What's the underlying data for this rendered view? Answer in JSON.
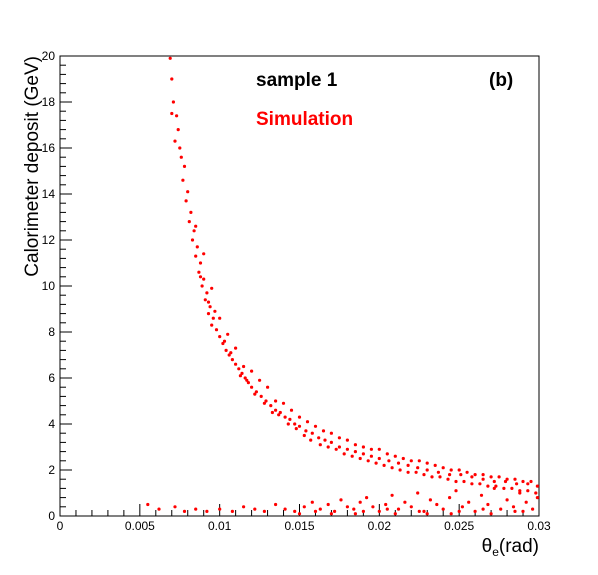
{
  "chart_data": {
    "type": "scatter",
    "title": "",
    "ylabel": "Calorimeter deposit (GeV)",
    "xlabel": {
      "symbol": "θ",
      "subscript": "e",
      "unit": "(rad)"
    },
    "xlim": [
      0,
      0.03
    ],
    "ylim": [
      0,
      20
    ],
    "x_ticks": [
      "0",
      "0.005",
      "0.01",
      "0.015",
      "0.02",
      "0.025",
      "0.03"
    ],
    "y_ticks": [
      "0",
      "2",
      "4",
      "6",
      "8",
      "10",
      "12",
      "14",
      "16",
      "18",
      "20"
    ],
    "grid": false,
    "marker_color": "#ff0000",
    "annotations": [
      {
        "text": "sample 1",
        "color": "#000000",
        "position": "top-center"
      },
      {
        "text": "(b)",
        "color": "#000000",
        "position": "top-right"
      },
      {
        "text": "Simulation",
        "color": "#ff0000",
        "position": "top-center"
      }
    ],
    "series": [
      {
        "points": [
          [
            0.0069,
            19.9
          ],
          [
            0.007,
            19.0
          ],
          [
            0.0071,
            18.0
          ],
          [
            0.007,
            17.5
          ],
          [
            0.0073,
            17.4
          ],
          [
            0.0074,
            16.8
          ],
          [
            0.0072,
            16.3
          ],
          [
            0.0075,
            16.0
          ],
          [
            0.0076,
            15.6
          ],
          [
            0.0078,
            15.2
          ],
          [
            0.0077,
            14.6
          ],
          [
            0.008,
            14.1
          ],
          [
            0.0079,
            13.7
          ],
          [
            0.0082,
            13.2
          ],
          [
            0.0081,
            12.8
          ],
          [
            0.0084,
            12.4
          ],
          [
            0.0083,
            12.0
          ],
          [
            0.0086,
            11.7
          ],
          [
            0.0085,
            11.3
          ],
          [
            0.0088,
            11.0
          ],
          [
            0.0087,
            10.6
          ],
          [
            0.009,
            10.3
          ],
          [
            0.0089,
            10.0
          ],
          [
            0.0092,
            9.7
          ],
          [
            0.0091,
            9.4
          ],
          [
            0.0094,
            9.1
          ],
          [
            0.0093,
            8.8
          ],
          [
            0.0096,
            8.6
          ],
          [
            0.0095,
            8.3
          ],
          [
            0.0098,
            8.1
          ],
          [
            0.01,
            7.8
          ],
          [
            0.0102,
            7.5
          ],
          [
            0.0104,
            7.2
          ],
          [
            0.0106,
            7.0
          ],
          [
            0.0108,
            6.8
          ],
          [
            0.011,
            6.6
          ],
          [
            0.0112,
            6.4
          ],
          [
            0.0114,
            6.2
          ],
          [
            0.0116,
            6.0
          ],
          [
            0.0118,
            5.8
          ],
          [
            0.012,
            5.6
          ],
          [
            0.0123,
            5.4
          ],
          [
            0.0126,
            5.2
          ],
          [
            0.0129,
            5.0
          ],
          [
            0.0132,
            4.8
          ],
          [
            0.0135,
            4.6
          ],
          [
            0.0138,
            4.5
          ],
          [
            0.0141,
            4.3
          ],
          [
            0.0144,
            4.2
          ],
          [
            0.0147,
            4.0
          ],
          [
            0.015,
            3.9
          ],
          [
            0.0154,
            3.7
          ],
          [
            0.0158,
            3.6
          ],
          [
            0.0162,
            3.4
          ],
          [
            0.0166,
            3.3
          ],
          [
            0.017,
            3.2
          ],
          [
            0.0175,
            3.0
          ],
          [
            0.018,
            2.9
          ],
          [
            0.0185,
            2.8
          ],
          [
            0.019,
            2.7
          ],
          [
            0.0195,
            2.6
          ],
          [
            0.02,
            2.5
          ],
          [
            0.0206,
            2.4
          ],
          [
            0.0212,
            2.3
          ],
          [
            0.0218,
            2.2
          ],
          [
            0.0224,
            2.1
          ],
          [
            0.023,
            2.0
          ],
          [
            0.0237,
            1.9
          ],
          [
            0.0244,
            1.8
          ],
          [
            0.0251,
            1.8
          ],
          [
            0.0258,
            1.7
          ],
          [
            0.0265,
            1.6
          ],
          [
            0.0272,
            1.5
          ],
          [
            0.0279,
            1.5
          ],
          [
            0.0286,
            1.4
          ],
          [
            0.0293,
            1.4
          ],
          [
            0.0299,
            1.3
          ],
          [
            0.0085,
            12.6
          ],
          [
            0.009,
            11.4
          ],
          [
            0.0095,
            9.9
          ],
          [
            0.01,
            8.6
          ],
          [
            0.0105,
            7.9
          ],
          [
            0.011,
            7.3
          ],
          [
            0.0115,
            6.5
          ],
          [
            0.012,
            6.3
          ],
          [
            0.0125,
            5.9
          ],
          [
            0.013,
            5.6
          ],
          [
            0.0135,
            5.0
          ],
          [
            0.014,
            4.9
          ],
          [
            0.0145,
            4.6
          ],
          [
            0.015,
            4.3
          ],
          [
            0.0155,
            4.1
          ],
          [
            0.016,
            3.9
          ],
          [
            0.0165,
            3.7
          ],
          [
            0.017,
            3.6
          ],
          [
            0.0175,
            3.4
          ],
          [
            0.018,
            3.3
          ],
          [
            0.0185,
            3.1
          ],
          [
            0.019,
            3.0
          ],
          [
            0.0195,
            2.9
          ],
          [
            0.02,
            2.9
          ],
          [
            0.0205,
            2.7
          ],
          [
            0.021,
            2.6
          ],
          [
            0.0215,
            2.5
          ],
          [
            0.022,
            2.4
          ],
          [
            0.0225,
            2.4
          ],
          [
            0.023,
            2.3
          ],
          [
            0.0235,
            2.2
          ],
          [
            0.024,
            2.1
          ],
          [
            0.0245,
            2.0
          ],
          [
            0.025,
            2.0
          ],
          [
            0.0255,
            1.9
          ],
          [
            0.026,
            1.8
          ],
          [
            0.0265,
            1.8
          ],
          [
            0.027,
            1.7
          ],
          [
            0.0275,
            1.7
          ],
          [
            0.028,
            1.6
          ],
          [
            0.0285,
            1.6
          ],
          [
            0.029,
            1.5
          ],
          [
            0.0295,
            1.5
          ],
          [
            0.0088,
            10.4
          ],
          [
            0.0093,
            9.3
          ],
          [
            0.0097,
            8.9
          ],
          [
            0.0103,
            7.6
          ],
          [
            0.0107,
            7.1
          ],
          [
            0.0113,
            6.1
          ],
          [
            0.0117,
            5.9
          ],
          [
            0.0122,
            5.3
          ],
          [
            0.0128,
            4.9
          ],
          [
            0.0133,
            4.5
          ],
          [
            0.0137,
            4.4
          ],
          [
            0.0143,
            4.0
          ],
          [
            0.0148,
            3.8
          ],
          [
            0.0153,
            3.5
          ],
          [
            0.0157,
            3.3
          ],
          [
            0.0163,
            3.1
          ],
          [
            0.0168,
            3.0
          ],
          [
            0.0173,
            2.9
          ],
          [
            0.0178,
            2.7
          ],
          [
            0.0183,
            2.6
          ],
          [
            0.0188,
            2.5
          ],
          [
            0.0193,
            2.4
          ],
          [
            0.0198,
            2.3
          ],
          [
            0.0203,
            2.2
          ],
          [
            0.0208,
            2.1
          ],
          [
            0.0213,
            2.0
          ],
          [
            0.0218,
            1.9
          ],
          [
            0.0223,
            1.9
          ],
          [
            0.0228,
            1.8
          ],
          [
            0.0233,
            1.7
          ],
          [
            0.0238,
            1.7
          ],
          [
            0.0243,
            1.6
          ],
          [
            0.0248,
            1.5
          ],
          [
            0.0253,
            1.5
          ],
          [
            0.0258,
            1.4
          ],
          [
            0.0263,
            1.4
          ],
          [
            0.0268,
            1.3
          ],
          [
            0.0273,
            1.3
          ],
          [
            0.0278,
            1.2
          ],
          [
            0.0283,
            1.2
          ],
          [
            0.0288,
            1.1
          ],
          [
            0.0293,
            1.1
          ],
          [
            0.0298,
            1.0
          ],
          [
            0.0055,
            0.5
          ],
          [
            0.0062,
            0.3
          ],
          [
            0.0072,
            0.4
          ],
          [
            0.0078,
            0.2
          ],
          [
            0.0085,
            0.3
          ],
          [
            0.0092,
            0.2
          ],
          [
            0.01,
            0.3
          ],
          [
            0.0108,
            0.2
          ],
          [
            0.0115,
            0.4
          ],
          [
            0.0122,
            0.3
          ],
          [
            0.0128,
            0.2
          ],
          [
            0.0135,
            0.5
          ],
          [
            0.0141,
            0.3
          ],
          [
            0.0147,
            0.2
          ],
          [
            0.0153,
            0.4
          ],
          [
            0.0158,
            0.6
          ],
          [
            0.0163,
            0.3
          ],
          [
            0.0168,
            0.5
          ],
          [
            0.0172,
            0.2
          ],
          [
            0.0176,
            0.7
          ],
          [
            0.018,
            0.4
          ],
          [
            0.0184,
            0.3
          ],
          [
            0.0188,
            0.6
          ],
          [
            0.0192,
            0.8
          ],
          [
            0.0196,
            0.4
          ],
          [
            0.02,
            0.2
          ],
          [
            0.0204,
            0.5
          ],
          [
            0.0208,
            0.9
          ],
          [
            0.0212,
            0.3
          ],
          [
            0.0216,
            0.6
          ],
          [
            0.022,
            0.4
          ],
          [
            0.0224,
            1.0
          ],
          [
            0.0228,
            0.2
          ],
          [
            0.0232,
            0.7
          ],
          [
            0.0236,
            0.5
          ],
          [
            0.024,
            0.3
          ],
          [
            0.0244,
            0.8
          ],
          [
            0.0248,
            1.1
          ],
          [
            0.0252,
            0.4
          ],
          [
            0.0256,
            0.6
          ],
          [
            0.026,
            0.2
          ],
          [
            0.0264,
            0.9
          ],
          [
            0.0268,
            0.5
          ],
          [
            0.0272,
            1.2
          ],
          [
            0.0276,
            0.3
          ],
          [
            0.028,
            0.7
          ],
          [
            0.0284,
            0.4
          ],
          [
            0.0288,
            1.0
          ],
          [
            0.0292,
            0.6
          ],
          [
            0.0296,
            0.3
          ],
          [
            0.0299,
            0.8
          ],
          [
            0.015,
            0.1
          ],
          [
            0.017,
            0.1
          ],
          [
            0.019,
            0.2
          ],
          [
            0.021,
            0.1
          ],
          [
            0.023,
            0.1
          ],
          [
            0.025,
            0.2
          ],
          [
            0.027,
            0.1
          ],
          [
            0.029,
            0.2
          ],
          [
            0.016,
            0.2
          ],
          [
            0.0185,
            0.1
          ],
          [
            0.0205,
            0.3
          ],
          [
            0.0225,
            0.2
          ],
          [
            0.0245,
            0.1
          ],
          [
            0.0265,
            0.3
          ],
          [
            0.0285,
            0.2
          ]
        ]
      }
    ]
  }
}
